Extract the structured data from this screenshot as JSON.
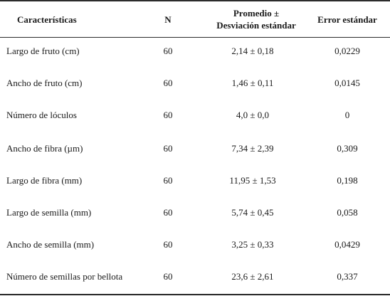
{
  "table": {
    "headers": {
      "characteristic": "Características",
      "n": "N",
      "mean_line1": "Promedio ±",
      "mean_line2": "Desviación estándar",
      "error": "Error estándar"
    },
    "rows": [
      {
        "characteristic": "Largo de fruto (cm)",
        "n": "60",
        "mean": "2,14 ± 0,18",
        "error": "0,0229"
      },
      {
        "characteristic": "Ancho de fruto (cm)",
        "n": "60",
        "mean": "1,46 ± 0,11",
        "error": "0,0145"
      },
      {
        "characteristic": "Número de lóculos",
        "n": "60",
        "mean": "4,0 ± 0,0",
        "error": "0"
      },
      {
        "characteristic": "Ancho de fibra (µm)",
        "n": "60",
        "mean": "7,34 ± 2,39",
        "error": "0,309"
      },
      {
        "characteristic": "Largo de fibra (mm)",
        "n": "60",
        "mean": "11,95 ± 1,53",
        "error": "0,198"
      },
      {
        "characteristic": "Largo de semilla (mm)",
        "n": "60",
        "mean": "5,74 ± 0,45",
        "error": "0,058"
      },
      {
        "characteristic": "Ancho de semilla (mm)",
        "n": "60",
        "mean": "3,25 ± 0,33",
        "error": "0,0429"
      },
      {
        "characteristic": "Número de semillas por bellota",
        "n": "60",
        "mean": "23,6 ± 2,61",
        "error": "0,337"
      }
    ]
  }
}
